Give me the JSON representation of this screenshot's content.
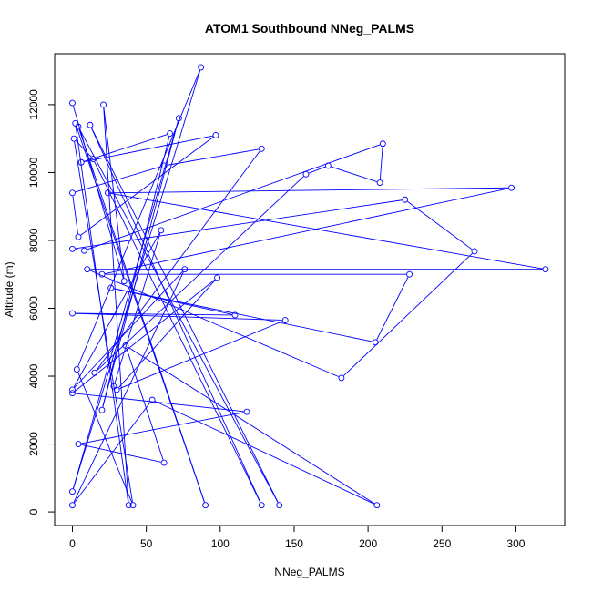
{
  "chart_data": {
    "type": "line",
    "title": "ATOM1 Southbound NNeg_PALMS",
    "xlabel": "NNeg_PALMS",
    "ylabel": "Altitude (m)",
    "xlim": [
      -12,
      333
    ],
    "ylim": [
      -400,
      13500
    ],
    "xticks": [
      0,
      50,
      100,
      150,
      200,
      250,
      300
    ],
    "yticks": [
      0,
      2000,
      4000,
      6000,
      8000,
      10000,
      12000
    ],
    "grid": false,
    "markers": "open-circle",
    "color": "#0000ff",
    "series": [
      {
        "points": [
          [
            0,
            12050
          ],
          [
            35,
            6800
          ],
          [
            21,
            12000
          ],
          [
            38,
            200
          ],
          [
            2,
            11450
          ],
          [
            90,
            200
          ],
          [
            4,
            11350
          ],
          [
            140,
            200
          ],
          [
            12,
            11400
          ],
          [
            128,
            200
          ],
          [
            14,
            10400
          ],
          [
            1,
            11000
          ],
          [
            41,
            200
          ],
          [
            3,
            4200
          ],
          [
            87,
            13100
          ],
          [
            0,
            600
          ],
          [
            72,
            11600
          ],
          [
            20,
            3000
          ],
          [
            66,
            11150
          ],
          [
            6,
            10300
          ],
          [
            97,
            11100
          ],
          [
            4,
            8100
          ],
          [
            0,
            9400
          ],
          [
            62,
            10200
          ],
          [
            128,
            10700
          ],
          [
            15,
            4100
          ],
          [
            158,
            9950
          ],
          [
            173,
            10200
          ],
          [
            208,
            9700
          ],
          [
            210,
            10850
          ],
          [
            8,
            7700
          ],
          [
            0,
            7750
          ],
          [
            225,
            9200
          ],
          [
            272,
            7680
          ],
          [
            182,
            3950
          ],
          [
            10,
            7150
          ],
          [
            320,
            7150
          ],
          [
            24,
            9400
          ],
          [
            297,
            9550
          ],
          [
            20,
            7000
          ],
          [
            228,
            7000
          ],
          [
            205,
            5000
          ],
          [
            26,
            6600
          ],
          [
            110,
            5800
          ],
          [
            0,
            5850
          ],
          [
            144,
            5650
          ],
          [
            30,
            3600
          ],
          [
            98,
            6900
          ],
          [
            0,
            3500
          ],
          [
            118,
            2950
          ],
          [
            4,
            2000
          ],
          [
            62,
            1450
          ],
          [
            36,
            4900
          ],
          [
            206,
            200
          ],
          [
            54,
            3300
          ],
          [
            0,
            200
          ],
          [
            76,
            7150
          ],
          [
            0,
            3600
          ],
          [
            60,
            8300
          ],
          [
            28,
            3700
          ]
        ]
      }
    ]
  }
}
